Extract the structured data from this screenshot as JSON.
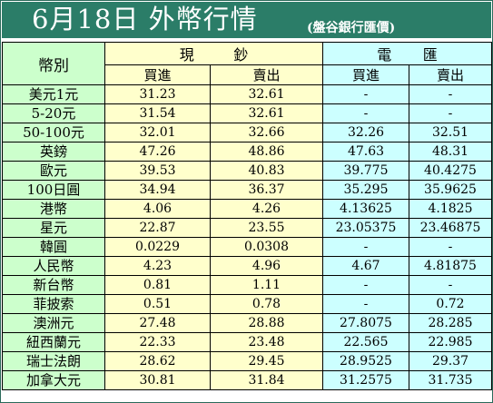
{
  "header": {
    "title": "6月18日 外幣行情",
    "subtitle": "(盤谷銀行匯價)"
  },
  "table": {
    "category_label": "幣別",
    "cash_group": [
      "現",
      "鈔"
    ],
    "wire_group": [
      "電",
      "匯"
    ],
    "buy_label": "買進",
    "sell_label": "賣出",
    "rows": [
      {
        "name": "美元1元",
        "cash_buy": "31.23",
        "cash_sell": "32.61",
        "wire_buy": "-",
        "wire_sell": "-"
      },
      {
        "name": "5-20元",
        "cash_buy": "31.54",
        "cash_sell": "32.61",
        "wire_buy": "-",
        "wire_sell": "-"
      },
      {
        "name": "50-100元",
        "cash_buy": "32.01",
        "cash_sell": "32.66",
        "wire_buy": "32.26",
        "wire_sell": "32.51"
      },
      {
        "name": "英鎊",
        "cash_buy": "47.26",
        "cash_sell": "48.86",
        "wire_buy": "47.63",
        "wire_sell": "48.31"
      },
      {
        "name": "歐元",
        "cash_buy": "39.53",
        "cash_sell": "40.83",
        "wire_buy": "39.775",
        "wire_sell": "40.4275"
      },
      {
        "name": "100日圓",
        "cash_buy": "34.94",
        "cash_sell": "36.37",
        "wire_buy": "35.295",
        "wire_sell": "35.9625"
      },
      {
        "name": "港幣",
        "cash_buy": "4.06",
        "cash_sell": "4.26",
        "wire_buy": "4.13625",
        "wire_sell": "4.1825"
      },
      {
        "name": "星元",
        "cash_buy": "22.87",
        "cash_sell": "23.55",
        "wire_buy": "23.05375",
        "wire_sell": "23.46875"
      },
      {
        "name": "韓圓",
        "cash_buy": "0.0229",
        "cash_sell": "0.0308",
        "wire_buy": "-",
        "wire_sell": "-"
      },
      {
        "name": "人民幣",
        "cash_buy": "4.23",
        "cash_sell": "4.96",
        "wire_buy": "4.67",
        "wire_sell": "4.81875"
      },
      {
        "name": "新台幣",
        "cash_buy": "0.81",
        "cash_sell": "1.11",
        "wire_buy": "-",
        "wire_sell": "-"
      },
      {
        "name": "菲披索",
        "cash_buy": "0.51",
        "cash_sell": "0.78",
        "wire_buy": "-",
        "wire_sell": "0.72"
      },
      {
        "name": "澳洲元",
        "cash_buy": "27.48",
        "cash_sell": "28.88",
        "wire_buy": "27.8075",
        "wire_sell": "28.285"
      },
      {
        "name": "紐西蘭元",
        "cash_buy": "22.33",
        "cash_sell": "23.48",
        "wire_buy": "22.565",
        "wire_sell": "22.985"
      },
      {
        "name": "瑞士法朗",
        "cash_buy": "28.62",
        "cash_sell": "29.45",
        "wire_buy": "28.9525",
        "wire_sell": "29.37"
      },
      {
        "name": "加拿大元",
        "cash_buy": "30.81",
        "cash_sell": "31.84",
        "wire_buy": "31.2575",
        "wire_sell": "31.735"
      }
    ]
  },
  "colors": {
    "title_bar": "#2b7d68",
    "name_column": "#ccffcc",
    "cash_columns": "#ffffcc",
    "wire_columns": "#ccffff"
  }
}
